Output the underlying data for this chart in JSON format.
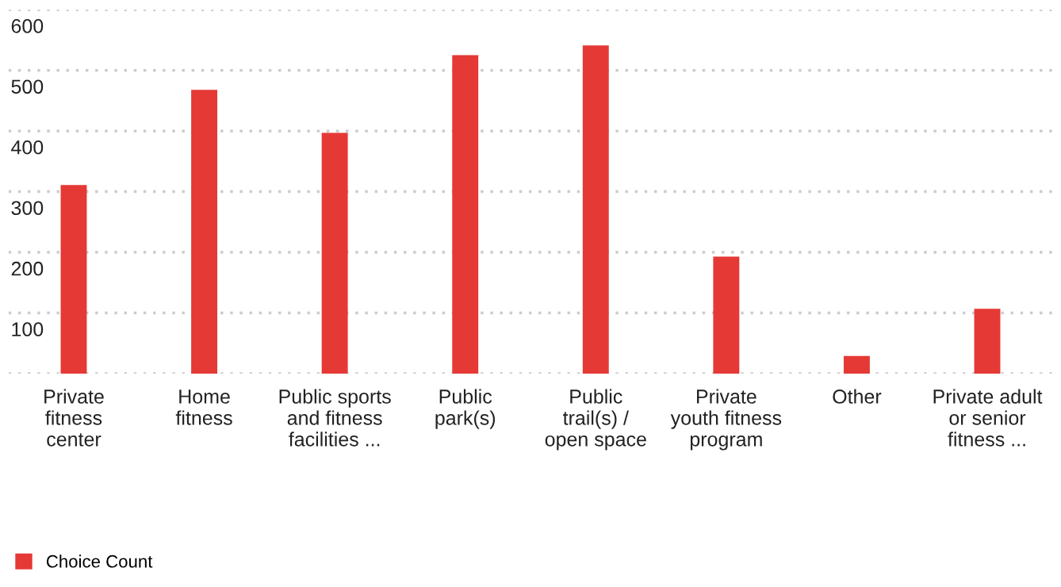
{
  "chart_data": {
    "type": "bar",
    "categories": [
      "Private\nfitness\ncenter",
      "Home\nfitness",
      "Public sports\nand fitness\nfacilities ...",
      "Public\npark(s)",
      "Public\ntrail(s) /\nopen space",
      "Private\nyouth fitness\nprogram",
      "Other",
      "Private adult\nor senior\nfitness ..."
    ],
    "series": [
      {
        "name": "Choice Count",
        "color": "#e53935",
        "values": [
          311,
          468,
          397,
          525,
          541,
          193,
          29,
          107
        ]
      }
    ],
    "ylim": [
      0,
      600
    ],
    "yticks": [
      {
        "value": 0,
        "label": null
      },
      100,
      200,
      300,
      400,
      500,
      600
    ],
    "grid": "y",
    "legend": "bottom left"
  }
}
